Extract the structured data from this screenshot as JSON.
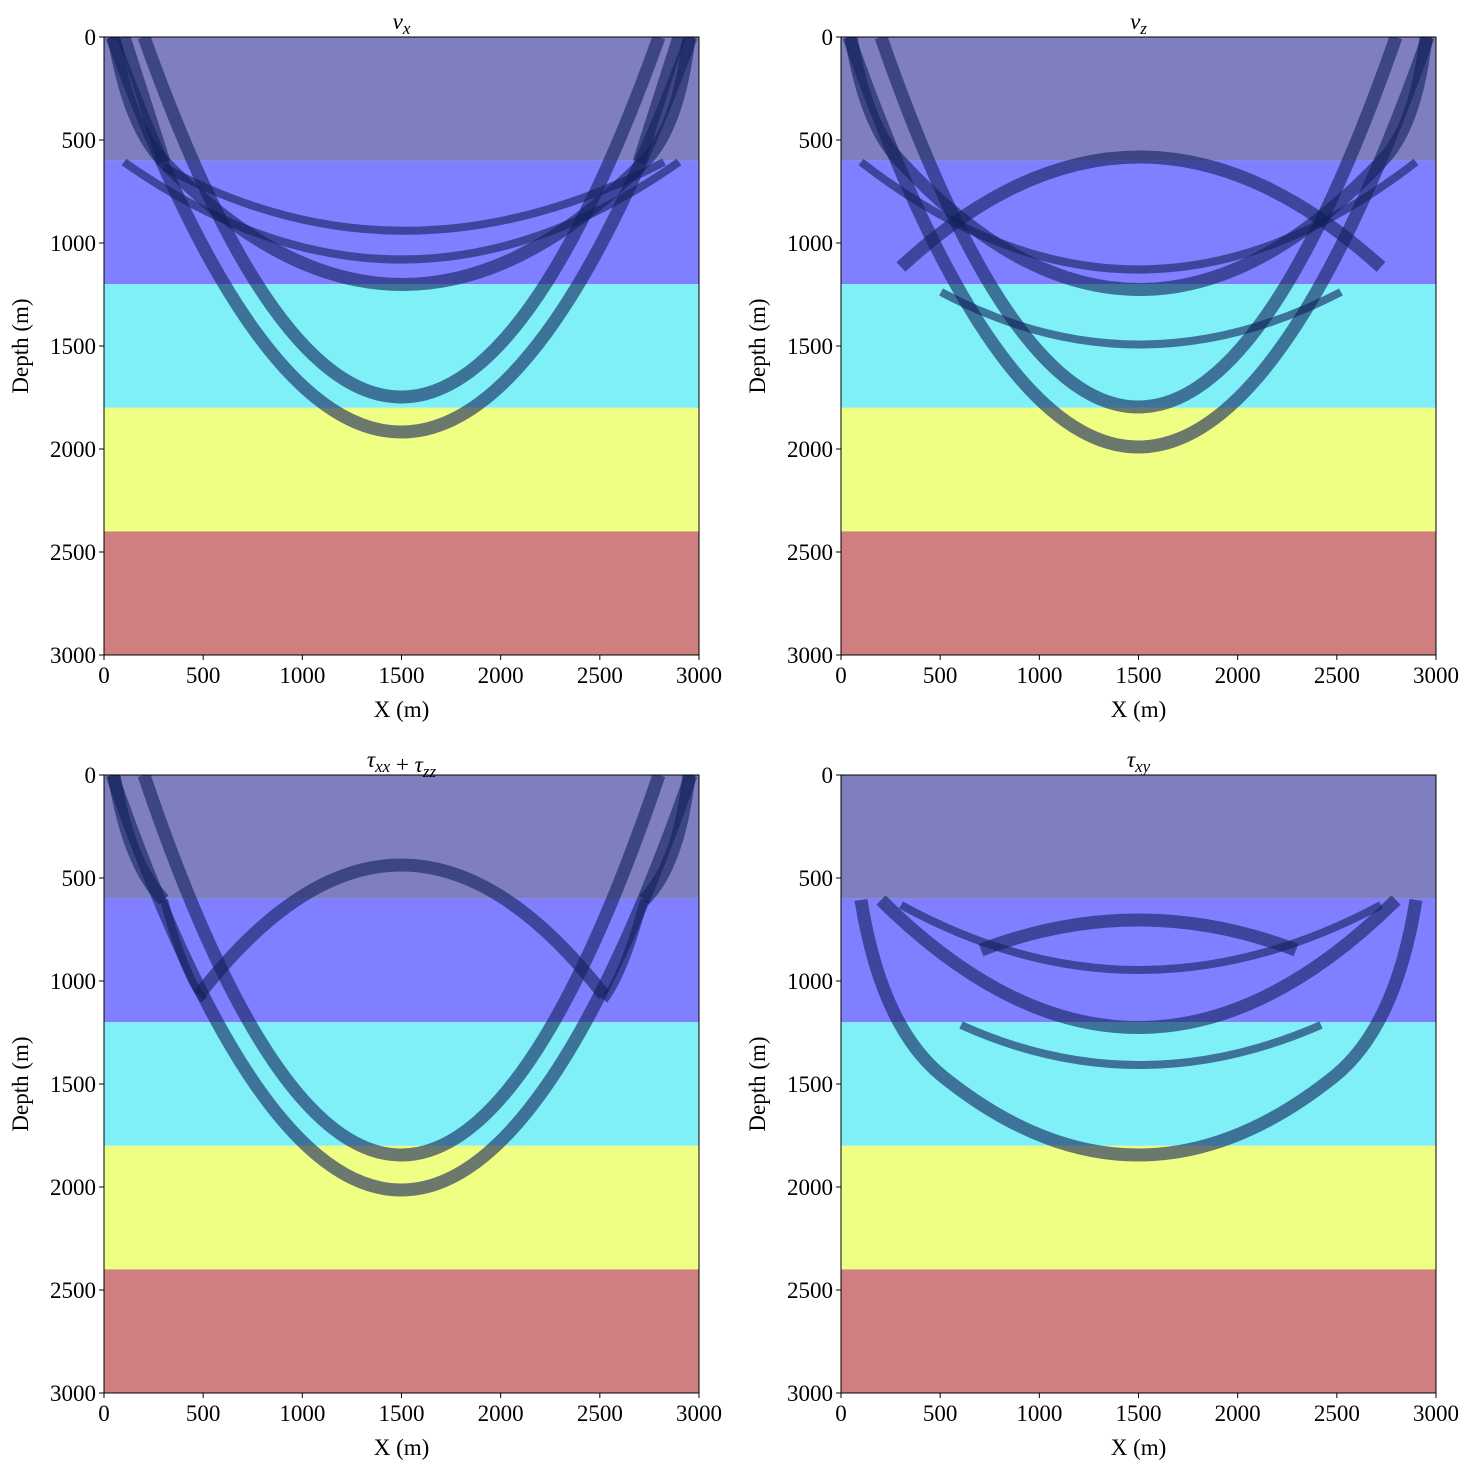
{
  "chart_data": [
    {
      "type": "image",
      "title": [
        {
          "base": "v",
          "sub": "x"
        }
      ],
      "xlabel": "X (m)",
      "ylabel": "Depth (m)",
      "xlim": [
        0,
        3000
      ],
      "ylim": [
        3000,
        0
      ],
      "xticks": [
        0,
        500,
        1000,
        1500,
        2000,
        2500,
        3000
      ],
      "yticks": [
        0,
        500,
        1000,
        1500,
        2000,
        2500,
        3000
      ],
      "layer_bounds": [
        0,
        600,
        1200,
        1800,
        2400,
        3000
      ],
      "layer_colors": [
        "#7f7fbf",
        "#7f7fff",
        "#7ff0f7",
        "#efff84",
        "#cf7f7f"
      ]
    },
    {
      "type": "image",
      "title": [
        {
          "base": "v",
          "sub": "z"
        }
      ],
      "xlabel": "X (m)",
      "ylabel": "Depth (m)",
      "xlim": [
        0,
        3000
      ],
      "ylim": [
        3000,
        0
      ],
      "xticks": [
        0,
        500,
        1000,
        1500,
        2000,
        2500,
        3000
      ],
      "yticks": [
        0,
        500,
        1000,
        1500,
        2000,
        2500,
        3000
      ],
      "layer_bounds": [
        0,
        600,
        1200,
        1800,
        2400,
        3000
      ],
      "layer_colors": [
        "#7f7fbf",
        "#7f7fff",
        "#7ff0f7",
        "#efff84",
        "#cf7f7f"
      ]
    },
    {
      "type": "image",
      "title": [
        {
          "base": "τ",
          "sub": "xx"
        },
        {
          "base": " + "
        },
        {
          "base": "τ",
          "sub": "zz"
        }
      ],
      "xlabel": "X (m)",
      "ylabel": "Depth (m)",
      "xlim": [
        0,
        3000
      ],
      "ylim": [
        3000,
        0
      ],
      "xticks": [
        0,
        500,
        1000,
        1500,
        2000,
        2500,
        3000
      ],
      "yticks": [
        0,
        500,
        1000,
        1500,
        2000,
        2500,
        3000
      ],
      "layer_bounds": [
        0,
        600,
        1200,
        1800,
        2400,
        3000
      ],
      "layer_colors": [
        "#7f7fbf",
        "#7f7fff",
        "#7ff0f7",
        "#efff84",
        "#cf7f7f"
      ]
    },
    {
      "type": "image",
      "title": [
        {
          "base": "τ",
          "sub": "xy"
        }
      ],
      "xlabel": "X (m)",
      "ylabel": "Depth (m)",
      "xlim": [
        0,
        3000
      ],
      "ylim": [
        3000,
        0
      ],
      "xticks": [
        0,
        500,
        1000,
        1500,
        2000,
        2500,
        3000
      ],
      "yticks": [
        0,
        500,
        1000,
        1500,
        2000,
        2500,
        3000
      ],
      "layer_bounds": [
        0,
        600,
        1200,
        1800,
        2400,
        3000
      ],
      "layer_colors": [
        "#7f7fbf",
        "#7f7fff",
        "#7ff0f7",
        "#efff84",
        "#cf7f7f"
      ]
    }
  ]
}
